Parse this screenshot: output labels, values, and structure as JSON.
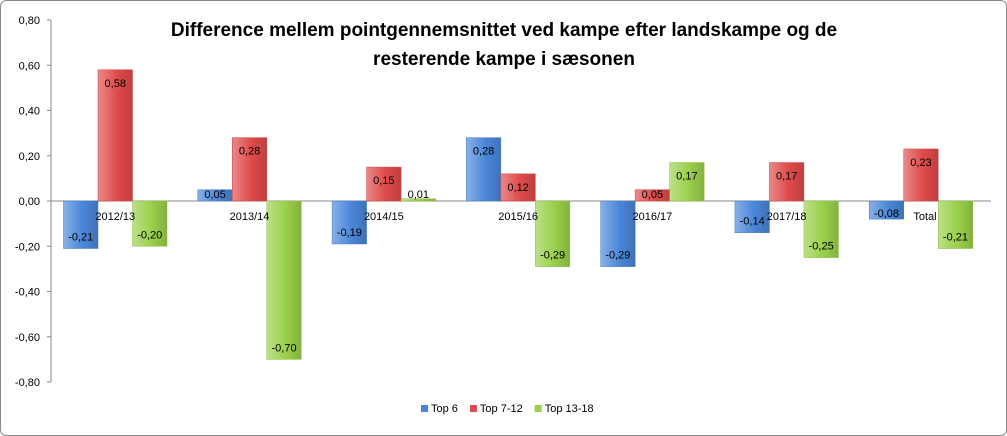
{
  "chart_data": {
    "type": "bar",
    "title": [
      "Difference mellem pointgennemsnittet ved kampe efter landskampe og de",
      "resterende kampe i sæsonen"
    ],
    "xlabel": "",
    "ylabel": "",
    "ylim": [
      -0.8,
      0.8
    ],
    "yticks": [
      "0,80",
      "0,60",
      "0,40",
      "0,20",
      "0,00",
      "-0,20",
      "-0,40",
      "-0,60",
      "-0,80"
    ],
    "ytick_values": [
      0.8,
      0.6,
      0.4,
      0.2,
      0.0,
      -0.2,
      -0.4,
      -0.6,
      -0.8
    ],
    "grid": false,
    "legend_position": "bottom",
    "categories": [
      "2012/13",
      "2013/14",
      "2014/15",
      "2015/16",
      "2016/17",
      "2017/18",
      "Total"
    ],
    "series": [
      {
        "name": "Top 6",
        "color": "#4a86d8",
        "values": [
          -0.21,
          0.05,
          -0.19,
          0.28,
          -0.29,
          -0.14,
          -0.08
        ],
        "labels": [
          "-0,21",
          "0,05",
          "-0,19",
          "0,28",
          "-0,29",
          "-0,14",
          "-0,08"
        ]
      },
      {
        "name": "Top 7-12",
        "color": "#e04a4a",
        "values": [
          0.58,
          0.28,
          0.15,
          0.12,
          0.05,
          0.17,
          0.23
        ],
        "labels": [
          "0,58",
          "0,28",
          "0,15",
          "0,12",
          "0,05",
          "0,17",
          "0,23"
        ]
      },
      {
        "name": "Top 13-18",
        "color": "#9ad04a",
        "values": [
          -0.2,
          -0.7,
          0.01,
          -0.29,
          0.17,
          -0.25,
          -0.21
        ],
        "labels": [
          "-0,20",
          "-0,70",
          "0,01",
          "-0,29",
          "0,17",
          "-0,25",
          "-0,21"
        ]
      }
    ]
  }
}
